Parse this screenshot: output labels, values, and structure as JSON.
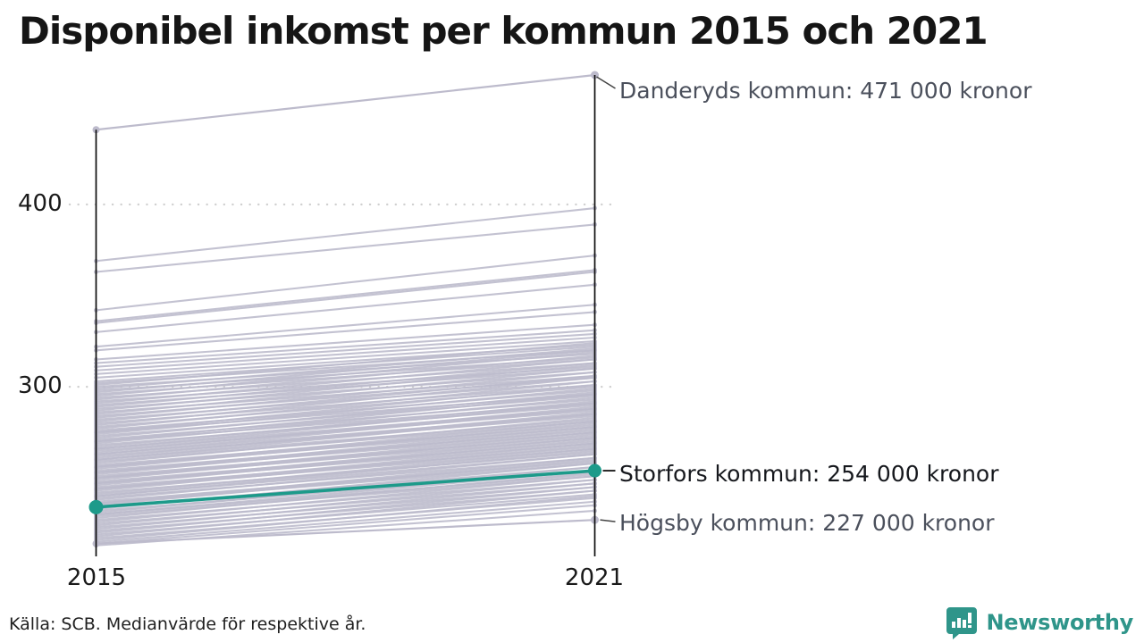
{
  "title": "Disponibel inkomst per kommun 2015 och 2021",
  "source": "Källa: SCB. Medianvärde för respektive år.",
  "branding": {
    "name": "Newsworthy",
    "color": "#2f958a",
    "icon": "newsworthy-speech-bubble-bar-chart-icon"
  },
  "colors": {
    "highlight": "#1d9a8a",
    "line_gray": "#bdbbcc",
    "axis": "#0d0d0d",
    "grid": "#d0d0d0",
    "connector": "#444444",
    "label_gray": "#4b505c",
    "label_dark": "#16181d"
  },
  "chart_data": {
    "type": "slope",
    "title": "Disponibel inkomst per kommun 2015 och 2021",
    "unit": "tusen kronor (medianvärde)",
    "x_categories": [
      "2015",
      "2021"
    ],
    "y_ticks": [
      400,
      300
    ],
    "ylim": [
      207,
      471
    ],
    "grid": "dotted-horizontal",
    "highlight_series": {
      "name": "Storfors kommun",
      "values": [
        234,
        254
      ],
      "label": "Storfors kommun: 254 000 kronor"
    },
    "annotated_series": [
      {
        "name": "Danderyds kommun",
        "values": [
          441,
          471
        ],
        "label": "Danderyds kommun: 471 000 kronor"
      },
      {
        "name": "Högsby kommun",
        "values": [
          214,
          227
        ],
        "label": "Högsby kommun: 227 000 kronor"
      }
    ],
    "background_series": [
      [
        369,
        398
      ],
      [
        363,
        389
      ],
      [
        342,
        372
      ],
      [
        336,
        364
      ],
      [
        335,
        363
      ],
      [
        330,
        356
      ],
      [
        322,
        345
      ],
      [
        320,
        341
      ],
      [
        315,
        334
      ],
      [
        313,
        331
      ],
      [
        311,
        329
      ],
      [
        309,
        327
      ],
      [
        307,
        325
      ],
      [
        305,
        323
      ],
      [
        303,
        322
      ],
      [
        302,
        320
      ],
      [
        301,
        324
      ],
      [
        300,
        318
      ],
      [
        299,
        321
      ],
      [
        298,
        316
      ],
      [
        297,
        320
      ],
      [
        296,
        315
      ],
      [
        295,
        319
      ],
      [
        294,
        313
      ],
      [
        293,
        317
      ],
      [
        292,
        311
      ],
      [
        291,
        315
      ],
      [
        290,
        310
      ],
      [
        289,
        313
      ],
      [
        288,
        308
      ],
      [
        287,
        312
      ],
      [
        286,
        306
      ],
      [
        285,
        310
      ],
      [
        284,
        305
      ],
      [
        283,
        308
      ],
      [
        282,
        303
      ],
      [
        281,
        306
      ],
      [
        280,
        301
      ],
      [
        279,
        305
      ],
      [
        278,
        300
      ],
      [
        277,
        303
      ],
      [
        276,
        298
      ],
      [
        275,
        301
      ],
      [
        275,
        296
      ],
      [
        274,
        299
      ],
      [
        273,
        295
      ],
      [
        272,
        297
      ],
      [
        271,
        293
      ],
      [
        270,
        296
      ],
      [
        270,
        291
      ],
      [
        269,
        294
      ],
      [
        268,
        290
      ],
      [
        267,
        292
      ],
      [
        266,
        288
      ],
      [
        266,
        291
      ],
      [
        265,
        287
      ],
      [
        264,
        289
      ],
      [
        263,
        285
      ],
      [
        263,
        288
      ],
      [
        262,
        284
      ],
      [
        261,
        286
      ],
      [
        260,
        282
      ],
      [
        260,
        285
      ],
      [
        259,
        281
      ],
      [
        258,
        283
      ],
      [
        257,
        279
      ],
      [
        256,
        281
      ],
      [
        256,
        278
      ],
      [
        255,
        280
      ],
      [
        254,
        276
      ],
      [
        253,
        278
      ],
      [
        253,
        275
      ],
      [
        252,
        277
      ],
      [
        251,
        273
      ],
      [
        250,
        275
      ],
      [
        250,
        272
      ],
      [
        249,
        274
      ],
      [
        248,
        270
      ],
      [
        247,
        272
      ],
      [
        247,
        269
      ],
      [
        246,
        271
      ],
      [
        245,
        267
      ],
      [
        244,
        269
      ],
      [
        244,
        266
      ],
      [
        243,
        268
      ],
      [
        242,
        264
      ],
      [
        241,
        266
      ],
      [
        240,
        263
      ],
      [
        240,
        265
      ],
      [
        239,
        261
      ],
      [
        238,
        263
      ],
      [
        237,
        259
      ],
      [
        236,
        261
      ],
      [
        236,
        258
      ],
      [
        235,
        260
      ],
      [
        234,
        256
      ],
      [
        233,
        258
      ],
      [
        232,
        254
      ],
      [
        231,
        256
      ],
      [
        230,
        252
      ],
      [
        230,
        254
      ],
      [
        229,
        251
      ],
      [
        228,
        253
      ],
      [
        227,
        249
      ],
      [
        226,
        251
      ],
      [
        225,
        247
      ],
      [
        224,
        249
      ],
      [
        223,
        245
      ],
      [
        222,
        247
      ],
      [
        221,
        243
      ],
      [
        220,
        245
      ],
      [
        219,
        241
      ],
      [
        218,
        243
      ],
      [
        217,
        239
      ],
      [
        216,
        240
      ],
      [
        215,
        237
      ],
      [
        214,
        235
      ],
      [
        213,
        232
      ]
    ]
  }
}
